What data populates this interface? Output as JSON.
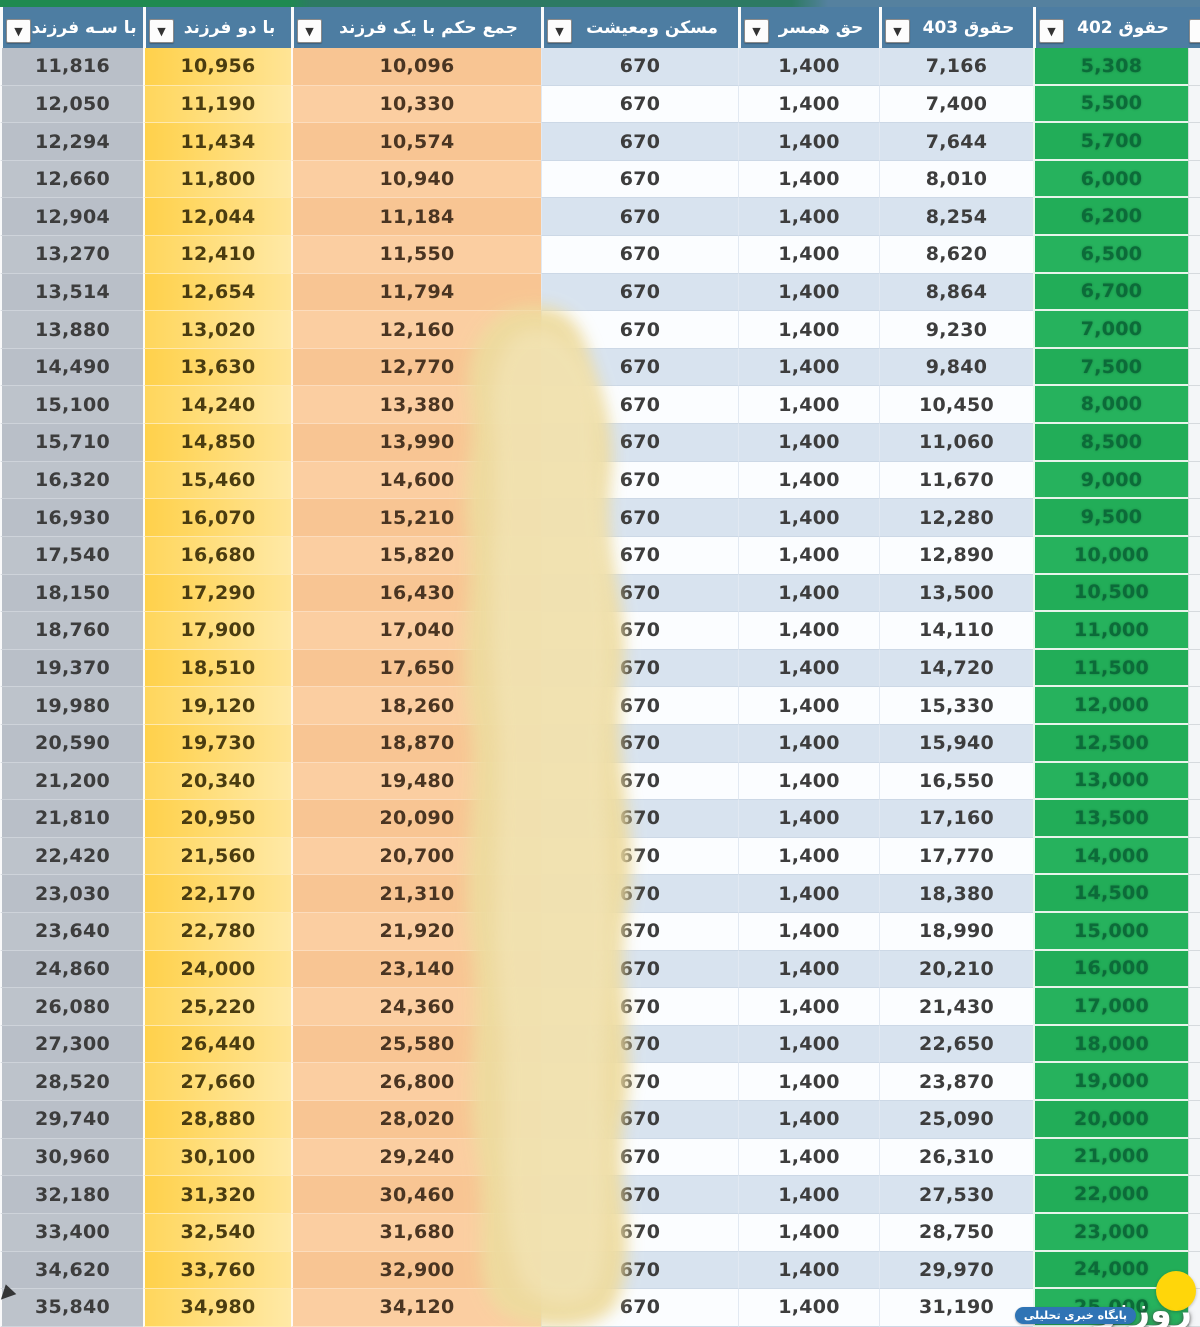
{
  "table": {
    "columns": [
      {
        "key": "salary402",
        "label": "حقوق 402",
        "style": "green"
      },
      {
        "key": "salary403",
        "label": "حقوق 403",
        "style": "blue"
      },
      {
        "key": "spouse",
        "label": "حق همسر",
        "style": "blue"
      },
      {
        "key": "housing",
        "label": "مسکن ومعیشت",
        "style": "blue"
      },
      {
        "key": "one_child",
        "label": "جمع حکم با یک فرزند",
        "style": "orange"
      },
      {
        "key": "two_children",
        "label": "با دو فرزند",
        "style": "yellow"
      },
      {
        "key": "three_children",
        "label": "با سـه فرزند",
        "style": "gray"
      }
    ],
    "rows": [
      [
        "5,308",
        "7,166",
        "1,400",
        "670",
        "10,096",
        "10,956",
        "11,816"
      ],
      [
        "5,500",
        "7,400",
        "1,400",
        "670",
        "10,330",
        "11,190",
        "12,050"
      ],
      [
        "5,700",
        "7,644",
        "1,400",
        "670",
        "10,574",
        "11,434",
        "12,294"
      ],
      [
        "6,000",
        "8,010",
        "1,400",
        "670",
        "10,940",
        "11,800",
        "12,660"
      ],
      [
        "6,200",
        "8,254",
        "1,400",
        "670",
        "11,184",
        "12,044",
        "12,904"
      ],
      [
        "6,500",
        "8,620",
        "1,400",
        "670",
        "11,550",
        "12,410",
        "13,270"
      ],
      [
        "6,700",
        "8,864",
        "1,400",
        "670",
        "11,794",
        "12,654",
        "13,514"
      ],
      [
        "7,000",
        "9,230",
        "1,400",
        "670",
        "12,160",
        "13,020",
        "13,880"
      ],
      [
        "7,500",
        "9,840",
        "1,400",
        "670",
        "12,770",
        "13,630",
        "14,490"
      ],
      [
        "8,000",
        "10,450",
        "1,400",
        "670",
        "13,380",
        "14,240",
        "15,100"
      ],
      [
        "8,500",
        "11,060",
        "1,400",
        "670",
        "13,990",
        "14,850",
        "15,710"
      ],
      [
        "9,000",
        "11,670",
        "1,400",
        "670",
        "14,600",
        "15,460",
        "16,320"
      ],
      [
        "9,500",
        "12,280",
        "1,400",
        "670",
        "15,210",
        "16,070",
        "16,930"
      ],
      [
        "10,000",
        "12,890",
        "1,400",
        "670",
        "15,820",
        "16,680",
        "17,540"
      ],
      [
        "10,500",
        "13,500",
        "1,400",
        "670",
        "16,430",
        "17,290",
        "18,150"
      ],
      [
        "11,000",
        "14,110",
        "1,400",
        "670",
        "17,040",
        "17,900",
        "18,760"
      ],
      [
        "11,500",
        "14,720",
        "1,400",
        "670",
        "17,650",
        "18,510",
        "19,370"
      ],
      [
        "12,000",
        "15,330",
        "1,400",
        "670",
        "18,260",
        "19,120",
        "19,980"
      ],
      [
        "12,500",
        "15,940",
        "1,400",
        "670",
        "18,870",
        "19,730",
        "20,590"
      ],
      [
        "13,000",
        "16,550",
        "1,400",
        "670",
        "19,480",
        "20,340",
        "21,200"
      ],
      [
        "13,500",
        "17,160",
        "1,400",
        "670",
        "20,090",
        "20,950",
        "21,810"
      ],
      [
        "14,000",
        "17,770",
        "1,400",
        "670",
        "20,700",
        "21,560",
        "22,420"
      ],
      [
        "14,500",
        "18,380",
        "1,400",
        "670",
        "21,310",
        "22,170",
        "23,030"
      ],
      [
        "15,000",
        "18,990",
        "1,400",
        "670",
        "21,920",
        "22,780",
        "23,640"
      ],
      [
        "16,000",
        "20,210",
        "1,400",
        "670",
        "23,140",
        "24,000",
        "24,860"
      ],
      [
        "17,000",
        "21,430",
        "1,400",
        "670",
        "24,360",
        "25,220",
        "26,080"
      ],
      [
        "18,000",
        "22,650",
        "1,400",
        "670",
        "25,580",
        "26,440",
        "27,300"
      ],
      [
        "19,000",
        "23,870",
        "1,400",
        "670",
        "26,800",
        "27,660",
        "28,520"
      ],
      [
        "20,000",
        "25,090",
        "1,400",
        "670",
        "28,020",
        "28,880",
        "29,740"
      ],
      [
        "21,000",
        "26,310",
        "1,400",
        "670",
        "29,240",
        "30,100",
        "30,960"
      ],
      [
        "22,000",
        "27,530",
        "1,400",
        "670",
        "30,460",
        "31,320",
        "32,180"
      ],
      [
        "23,000",
        "28,750",
        "1,400",
        "670",
        "31,680",
        "32,540",
        "33,400"
      ],
      [
        "24,000",
        "29,970",
        "1,400",
        "670",
        "32,900",
        "33,760",
        "34,620"
      ],
      [
        "25,000",
        "31,190",
        "1,400",
        "670",
        "34,120",
        "34,980",
        "35,840"
      ]
    ]
  },
  "icons": {
    "filter_arrow": "▼"
  },
  "watermark": {
    "brand": "روزنو",
    "tagline": "پایگاه خبری تحلیلی"
  },
  "colors": {
    "header_bg": "#4d7da2",
    "green_col": "#26b25d",
    "green_text": "#0c6b39",
    "yellow_col": "#ffd14b",
    "orange_col": "#f8c593",
    "gray_col": "#b9bfc8",
    "stripe_blue": "#d8e3ef",
    "smudge": "#eedb9f",
    "watermark_yellow": "#ffd60a",
    "watermark_blue": "#2f74b5"
  }
}
